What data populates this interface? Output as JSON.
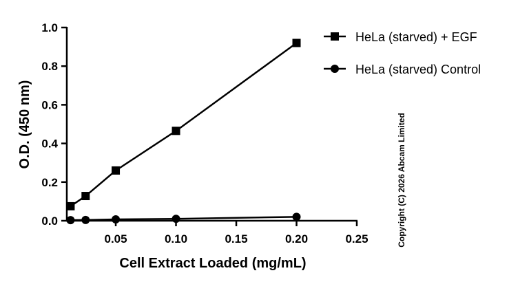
{
  "chart_data": {
    "type": "line",
    "title": "",
    "xlabel": "Cell Extract Loaded (mg/mL)",
    "ylabel": "O.D. (450 nm)",
    "xlim": [
      0.0094,
      0.25
    ],
    "ylim": [
      0,
      1.0
    ],
    "xticks": [
      0.05,
      0.1,
      0.15,
      0.2,
      0.25
    ],
    "xtick_labels": [
      "0.05",
      "0.10",
      "0.15",
      "0.20",
      "0.25"
    ],
    "yticks": [
      0,
      0.2,
      0.4,
      0.6,
      0.8,
      1.0
    ],
    "ytick_labels": [
      "0.0",
      "0.2",
      "0.4",
      "0.6",
      "0.8",
      "1.0"
    ],
    "grid": false,
    "legend_position": "top-right",
    "x": [
      0.0125,
      0.025,
      0.05,
      0.1,
      0.2
    ],
    "series": [
      {
        "name": "HeLa (starved) + EGF",
        "marker": "square",
        "values": [
          0.075,
          0.128,
          0.26,
          0.465,
          0.92
        ]
      },
      {
        "name": "HeLa (starved) Control",
        "marker": "circle",
        "values": [
          0.003,
          0.004,
          0.007,
          0.01,
          0.02
        ]
      }
    ],
    "annotation": "Copyright (C) 2026 Abcam Limited"
  }
}
